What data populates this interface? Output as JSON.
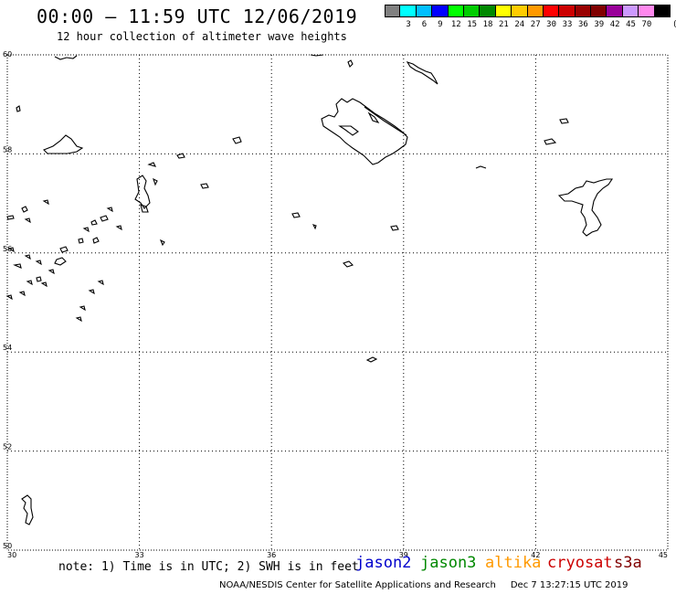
{
  "header": {
    "title": "00:00 – 11:59 UTC 12/06/2019",
    "subtitle": "12 hour collection of altimeter wave heights"
  },
  "legend": {
    "unit": "(ft)",
    "items": [
      {
        "label": "",
        "color": "#808080"
      },
      {
        "label": "3",
        "color": "#00ffff"
      },
      {
        "label": "6",
        "color": "#00bfff"
      },
      {
        "label": "9",
        "color": "#0000ff"
      },
      {
        "label": "12",
        "color": "#00ff00"
      },
      {
        "label": "15",
        "color": "#00cc00"
      },
      {
        "label": "18",
        "color": "#008800"
      },
      {
        "label": "21",
        "color": "#ffff00"
      },
      {
        "label": "24",
        "color": "#ffcc00"
      },
      {
        "label": "27",
        "color": "#ff9900"
      },
      {
        "label": "30",
        "color": "#ff0000"
      },
      {
        "label": "33",
        "color": "#cc0000"
      },
      {
        "label": "36",
        "color": "#990000"
      },
      {
        "label": "39",
        "color": "#800000"
      },
      {
        "label": "42",
        "color": "#990099"
      },
      {
        "label": "45",
        "color": "#cc99ff"
      },
      {
        "label": "70",
        "color": "#ff88ee"
      },
      {
        "label": "",
        "color": "#000000"
      }
    ]
  },
  "map": {
    "lon_ticks": [
      "30",
      "33",
      "36",
      "39",
      "42",
      "45"
    ],
    "lat_ticks": [
      "60",
      "58",
      "56",
      "54",
      "52",
      "50"
    ],
    "lon_range": [
      30,
      45
    ],
    "lat_range": [
      50,
      60
    ]
  },
  "note": "note: 1) Time is in UTC; 2) SWH is in feet",
  "satellites": [
    {
      "name": "jason2",
      "color": "#0000cc"
    },
    {
      "name": "jason3",
      "color": "#008800"
    },
    {
      "name": "altika",
      "color": "#ff9900"
    },
    {
      "name": "cryosat",
      "color": "#cc0000"
    },
    {
      "name": "s3a",
      "color": "#800000"
    }
  ],
  "footer": {
    "credit": "NOAA/NESDIS Center for Satellite Applications and Research",
    "timestamp": "Dec  7 13:27:15 UTC 2019"
  }
}
